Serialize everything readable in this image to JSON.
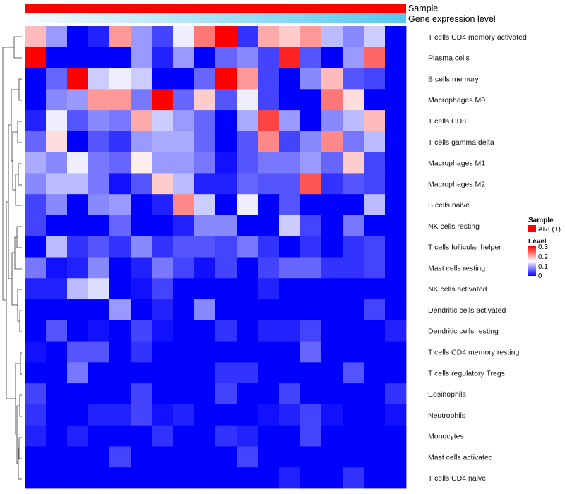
{
  "chart_data": {
    "type": "heatmap",
    "title": "",
    "annotations": {
      "sample_label": "Sample",
      "gene_label": "Gene expression level",
      "sample_color": "#ff0000",
      "gene_gradient_start": "#f7fbfd",
      "gene_gradient_end": "#55c8ee"
    },
    "legend": {
      "sample_title": "Sample",
      "sample_entry": "ARL(+)",
      "level_title": "Level",
      "level_ticks": [
        "0.3",
        "0.2",
        "0.1",
        "0"
      ],
      "low_color": "#0000ff",
      "mid_color": "#ffffff",
      "high_color": "#ff0000",
      "placement": "right"
    },
    "value_range": [
      0,
      0.3
    ],
    "columns": 18,
    "rows": [
      "T cells CD4 memory activated",
      "Plasma cells",
      "B cells memory",
      "Macrophages M0",
      "T cells CD8",
      "T cells gamma delta",
      "Macrophages M1",
      "Macrophages M2",
      "B cells naive",
      "NK cells resting",
      "T cells follicular helper",
      "Mast cells resting",
      "NK cells activated",
      "Dendritic cells activated",
      "Dendritic cells resting",
      "T cells CD4 memory resting",
      "T cells regulatory  Tregs",
      "Eosinophils",
      "Neutrophils",
      "Monocytes",
      "Mast cells activated",
      "T cells CD4 naive"
    ],
    "values": [
      [
        0.19,
        0.09,
        0.0,
        0.02,
        0.21,
        0.09,
        0.04,
        0.14,
        0.23,
        0.3,
        0.03,
        0.2,
        0.18,
        0.21,
        0.11,
        0.08,
        0.12,
        0.0
      ],
      [
        0.3,
        0.0,
        0.0,
        0.0,
        0.0,
        0.09,
        0.02,
        0.09,
        0.0,
        0.06,
        0.08,
        0.04,
        0.28,
        0.05,
        0.0,
        0.09,
        0.24,
        0.0
      ],
      [
        0.0,
        0.06,
        0.3,
        0.12,
        0.14,
        0.12,
        0.0,
        0.0,
        0.06,
        0.3,
        0.21,
        0.04,
        0.0,
        0.08,
        0.19,
        0.05,
        0.04,
        0.0
      ],
      [
        0.0,
        0.08,
        0.09,
        0.21,
        0.21,
        0.07,
        0.3,
        0.06,
        0.18,
        0.05,
        0.14,
        0.04,
        0.0,
        0.0,
        0.23,
        0.17,
        0.0,
        0.0
      ],
      [
        0.02,
        0.14,
        0.05,
        0.08,
        0.07,
        0.2,
        0.12,
        0.09,
        0.06,
        0.0,
        0.1,
        0.26,
        0.09,
        0.0,
        0.08,
        0.11,
        0.19,
        0.0
      ],
      [
        0.06,
        0.17,
        0.0,
        0.05,
        0.03,
        0.09,
        0.1,
        0.1,
        0.06,
        0.0,
        0.05,
        0.22,
        0.04,
        0.08,
        0.22,
        0.07,
        0.11,
        0.0
      ],
      [
        0.1,
        0.08,
        0.14,
        0.07,
        0.06,
        0.16,
        0.09,
        0.09,
        0.07,
        0.01,
        0.05,
        0.07,
        0.07,
        0.09,
        0.06,
        0.18,
        0.04,
        0.0
      ],
      [
        0.08,
        0.11,
        0.11,
        0.07,
        0.01,
        0.05,
        0.18,
        0.11,
        0.02,
        0.02,
        0.06,
        0.05,
        0.05,
        0.25,
        0.03,
        0.05,
        0.04,
        0.0
      ],
      [
        0.04,
        0.08,
        0.0,
        0.08,
        0.09,
        0.0,
        0.02,
        0.22,
        0.12,
        0.0,
        0.14,
        0.0,
        0.05,
        0.0,
        0.0,
        0.0,
        0.11,
        0.0
      ],
      [
        0.04,
        0.0,
        0.0,
        0.0,
        0.06,
        0.0,
        0.0,
        0.02,
        0.08,
        0.08,
        0.0,
        0.0,
        0.12,
        0.04,
        0.0,
        0.07,
        0.0,
        0.0
      ],
      [
        0.0,
        0.11,
        0.03,
        0.05,
        0.03,
        0.08,
        0.03,
        0.05,
        0.05,
        0.04,
        0.07,
        0.03,
        0.0,
        0.03,
        0.0,
        0.03,
        0.04,
        0.0
      ],
      [
        0.07,
        0.01,
        0.02,
        0.08,
        0.0,
        0.02,
        0.07,
        0.04,
        0.01,
        0.04,
        0.0,
        0.04,
        0.06,
        0.06,
        0.03,
        0.03,
        0.04,
        0.0
      ],
      [
        0.02,
        0.02,
        0.11,
        0.13,
        0.0,
        0.01,
        0.04,
        0.0,
        0.0,
        0.0,
        0.0,
        0.02,
        0.0,
        0.0,
        0.0,
        0.0,
        0.0,
        0.0
      ],
      [
        0.0,
        0.0,
        0.0,
        0.0,
        0.09,
        0.0,
        0.02,
        0.0,
        0.08,
        0.0,
        0.0,
        0.0,
        0.0,
        0.0,
        0.0,
        0.0,
        0.04,
        0.0
      ],
      [
        0.0,
        0.05,
        0.0,
        0.01,
        0.0,
        0.04,
        0.01,
        0.0,
        0.0,
        0.03,
        0.0,
        0.02,
        0.02,
        0.04,
        0.0,
        0.0,
        0.0,
        0.02
      ],
      [
        0.01,
        0.0,
        0.05,
        0.05,
        0.0,
        0.03,
        0.0,
        0.0,
        0.0,
        0.0,
        0.0,
        0.0,
        0.0,
        0.06,
        0.0,
        0.0,
        0.0,
        0.0
      ],
      [
        0.0,
        0.0,
        0.07,
        0.0,
        0.0,
        0.0,
        0.0,
        0.0,
        0.0,
        0.03,
        0.03,
        0.0,
        0.0,
        0.0,
        0.0,
        0.05,
        0.0,
        0.0
      ],
      [
        0.04,
        0.0,
        0.0,
        0.0,
        0.0,
        0.04,
        0.0,
        0.0,
        0.0,
        0.04,
        0.0,
        0.0,
        0.04,
        0.0,
        0.0,
        0.0,
        0.0,
        0.03
      ],
      [
        0.03,
        0.0,
        0.0,
        0.02,
        0.02,
        0.04,
        0.01,
        0.02,
        0.0,
        0.0,
        0.0,
        0.01,
        0.02,
        0.04,
        0.01,
        0.0,
        0.0,
        0.01
      ],
      [
        0.02,
        0.0,
        0.02,
        0.0,
        0.0,
        0.0,
        0.03,
        0.0,
        0.0,
        0.03,
        0.02,
        0.0,
        0.0,
        0.04,
        0.0,
        0.0,
        0.0,
        0.0
      ],
      [
        0.0,
        0.0,
        0.0,
        0.0,
        0.04,
        0.0,
        0.0,
        0.0,
        0.0,
        0.0,
        0.04,
        0.0,
        0.0,
        0.0,
        0.0,
        0.0,
        0.0,
        0.0
      ],
      [
        0.0,
        0.0,
        0.0,
        0.0,
        0.0,
        0.0,
        0.0,
        0.0,
        0.0,
        0.0,
        0.0,
        0.0,
        0.02,
        0.0,
        0.0,
        0.03,
        0.0,
        0.0
      ]
    ]
  }
}
